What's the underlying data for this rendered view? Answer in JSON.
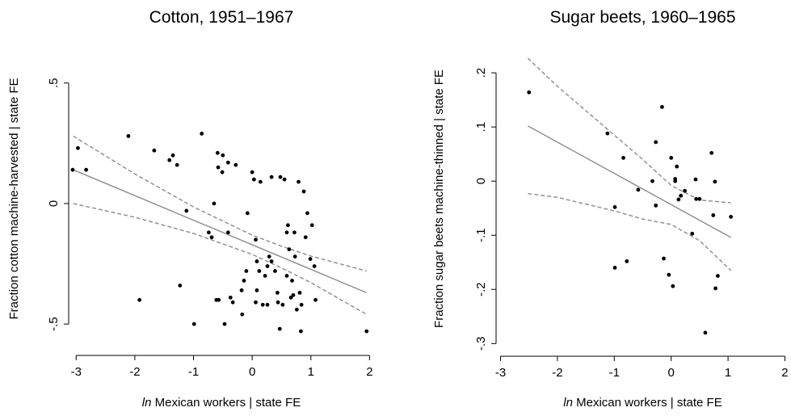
{
  "chart_data": [
    {
      "type": "scatter",
      "title": "Cotton, 1951–1967",
      "xlabel": [
        "ln",
        "Mexican workers | state FE"
      ],
      "ylabel": "Fraction cotton machine-harvested | state FE",
      "xlim": [
        -3.1,
        2.05
      ],
      "ylim": [
        -0.6,
        0.64
      ],
      "xticks": [
        -3,
        -2,
        -1,
        0,
        1,
        2
      ],
      "yticks": [
        {
          "value": -0.5,
          "label": "-.5"
        },
        0,
        {
          "value": 0.5,
          "label": ".5"
        }
      ],
      "point_color": "#000000",
      "line_color": "#8c8c8c",
      "points": {
        "x": [
          -3.06,
          -2.97,
          -2.83,
          -2.11,
          -1.92,
          -1.67,
          -1.41,
          -1.35,
          -1.28,
          -1.12,
          -1.23,
          -0.86,
          -0.99,
          -0.74,
          -0.69,
          -0.65,
          -0.61,
          -0.57,
          -0.59,
          -0.58,
          -0.51,
          -0.5,
          -0.41,
          -0.37,
          -0.47,
          -0.33,
          -0.28,
          -0.41,
          -0.18,
          -0.17,
          -0.14,
          -0.1,
          -0.08,
          0.0,
          0.03,
          0.06,
          0.08,
          0.06,
          0.08,
          0.12,
          0.14,
          0.18,
          0.22,
          0.26,
          0.26,
          0.29,
          0.33,
          0.33,
          0.39,
          0.43,
          0.44,
          0.47,
          0.48,
          0.52,
          0.55,
          0.59,
          0.59,
          0.61,
          0.63,
          0.66,
          0.68,
          0.7,
          0.72,
          0.73,
          0.76,
          0.79,
          0.81,
          0.84,
          0.83,
          0.88,
          0.91,
          0.94,
          0.99,
          1.02,
          1.06,
          1.08,
          1.95
        ],
        "y": [
          0.14,
          0.23,
          0.14,
          0.28,
          -0.4,
          0.22,
          0.18,
          0.2,
          0.16,
          -0.03,
          -0.34,
          0.29,
          -0.5,
          -0.12,
          -0.14,
          0.0,
          -0.4,
          -0.4,
          0.21,
          0.15,
          0.13,
          0.2,
          0.17,
          -0.39,
          -0.5,
          -0.41,
          0.16,
          -0.12,
          -0.36,
          -0.46,
          -0.32,
          -0.28,
          -0.04,
          0.13,
          0.1,
          -0.15,
          -0.24,
          -0.41,
          -0.36,
          -0.28,
          0.09,
          -0.42,
          -0.3,
          -0.26,
          -0.42,
          -0.22,
          -0.24,
          0.11,
          -0.28,
          -0.37,
          -0.41,
          -0.52,
          0.11,
          -0.42,
          0.1,
          -0.12,
          -0.3,
          -0.09,
          -0.19,
          -0.39,
          -0.32,
          -0.38,
          -0.12,
          -0.22,
          -0.44,
          0.09,
          -0.37,
          -0.42,
          -0.53,
          0.05,
          -0.14,
          -0.04,
          -0.23,
          -0.09,
          -0.26,
          -0.4,
          -0.53
        ]
      },
      "fit": {
        "x": [
          -3.05,
          1.95
        ],
        "y": [
          0.14,
          -0.37
        ]
      },
      "ci_upper": {
        "x": [
          -3.05,
          -2,
          -1,
          0,
          0.5,
          1,
          1.95
        ],
        "y": [
          0.28,
          0.123,
          -0.014,
          -0.131,
          -0.177,
          -0.218,
          -0.28
        ]
      },
      "ci_lower": {
        "x": [
          -3.05,
          -2,
          -1,
          0,
          0.5,
          1,
          1.95
        ],
        "y": [
          0.0,
          -0.057,
          -0.124,
          -0.211,
          -0.267,
          -0.328,
          -0.46
        ]
      }
    },
    {
      "type": "scatter",
      "title": "Sugar beets, 1960–1965",
      "xlabel": [
        "ln",
        "Mexican workers | state FE"
      ],
      "ylabel": "Fraction sugar beets machine-thinned | state FE",
      "xlim": [
        -3.05,
        2.05
      ],
      "ylim": [
        -0.31,
        0.245
      ],
      "xticks": [
        -3,
        -2,
        -1,
        0,
        1,
        2
      ],
      "yticks": [
        {
          "value": -0.3,
          "label": "-.3"
        },
        {
          "value": -0.2,
          "label": "-.2"
        },
        {
          "value": -0.1,
          "label": "-.1"
        },
        0,
        {
          "value": 0.1,
          "label": ".1"
        },
        {
          "value": 0.2,
          "label": ".2"
        }
      ],
      "point_color": "#000000",
      "line_color": "#8c8c8c",
      "points": {
        "x": [
          -2.5,
          -1.12,
          -0.84,
          -0.99,
          -0.99,
          -0.58,
          -0.78,
          -0.27,
          -0.16,
          -0.27,
          -0.33,
          -0.13,
          -0.04,
          0.03,
          0.0,
          0.07,
          0.1,
          0.07,
          0.17,
          0.13,
          0.24,
          0.43,
          0.44,
          0.5,
          0.37,
          0.6,
          0.71,
          0.77,
          0.74,
          0.78,
          0.82,
          1.05
        ],
        "y": [
          0.164,
          0.088,
          0.043,
          -0.048,
          -0.16,
          -0.016,
          -0.148,
          0.072,
          0.137,
          -0.045,
          0.0,
          -0.143,
          -0.173,
          -0.194,
          0.043,
          0.004,
          0.027,
          0.0,
          -0.027,
          -0.034,
          -0.018,
          0.003,
          -0.033,
          -0.033,
          -0.097,
          -0.28,
          0.052,
          -0.001,
          -0.063,
          -0.198,
          -0.175,
          -0.066
        ]
      },
      "fit": {
        "x": [
          -2.52,
          1.05
        ],
        "y": [
          0.102,
          -0.104
        ]
      },
      "ci_upper": {
        "x": [
          -2.52,
          -2,
          -1,
          -0.5,
          0,
          0.5,
          1.05
        ],
        "y": [
          0.227,
          0.175,
          0.085,
          0.04,
          -0.008,
          -0.035,
          -0.04
        ]
      },
      "ci_lower": {
        "x": [
          -2.52,
          -2,
          -1,
          -0.5,
          0,
          0.5,
          1.05
        ],
        "y": [
          -0.023,
          -0.03,
          -0.055,
          -0.07,
          -0.08,
          -0.11,
          -0.165
        ]
      }
    }
  ]
}
